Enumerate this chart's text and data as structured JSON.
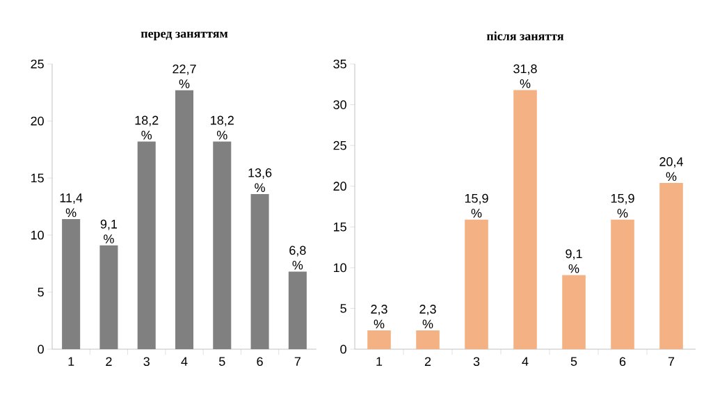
{
  "chart_data": [
    {
      "type": "bar",
      "title": "**перед заняттям**",
      "categories": [
        "1",
        "2",
        "3",
        "4",
        "5",
        "6",
        "7"
      ],
      "values": [
        11.4,
        9.1,
        18.2,
        22.7,
        18.2,
        13.6,
        6.8
      ],
      "color": "#808080",
      "value_labels": [
        "11,4 %",
        "9,1 %",
        "18,2 %",
        "22,7 %",
        "18,2 %",
        "13,6 %",
        "6,8 %"
      ],
      "ylim": [
        0,
        25
      ],
      "yticks": [
        0,
        5,
        10,
        15,
        20,
        25
      ],
      "grid": false
    },
    {
      "type": "bar",
      "title": "**після заняття**",
      "categories": [
        "1",
        "2",
        "3",
        "4",
        "5",
        "6",
        "7"
      ],
      "values": [
        2.3,
        2.3,
        15.9,
        31.8,
        9.1,
        15.9,
        20.4
      ],
      "color": "#f4b183",
      "value_labels": [
        "2,3 %",
        "2,3 %",
        "15,9 %",
        "31,8 %",
        "9,1 %",
        "15,9 %",
        "20,4 %"
      ],
      "ylim": [
        0,
        35
      ],
      "yticks": [
        0,
        5,
        10,
        15,
        20,
        25,
        30,
        35
      ],
      "grid": false
    }
  ]
}
